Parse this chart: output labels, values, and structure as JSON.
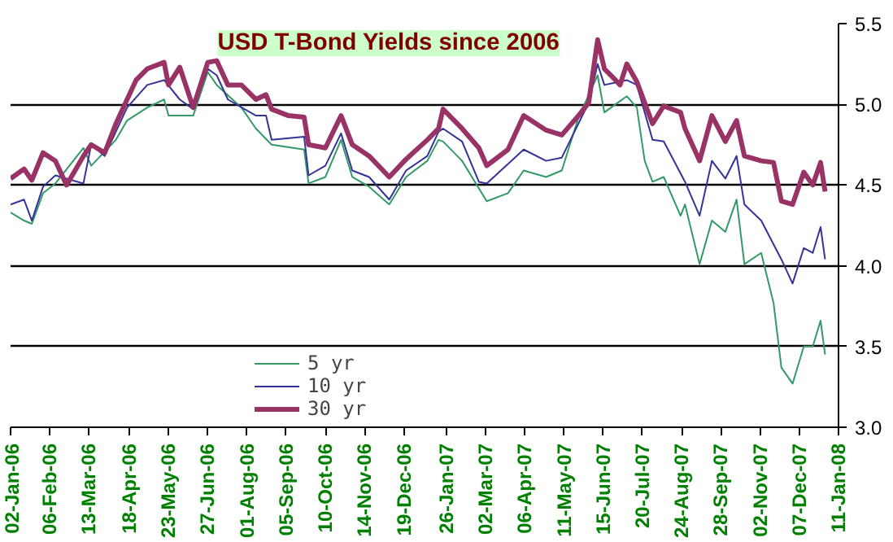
{
  "chart_data": {
    "type": "line",
    "title": "USD T-Bond Yields since 2006",
    "ylim": [
      3.0,
      5.5
    ],
    "yticks": [
      {
        "value": 3.0,
        "label": "3.0"
      },
      {
        "value": 3.5,
        "label": "3.5"
      },
      {
        "value": 4.0,
        "label": "4.0"
      },
      {
        "value": 4.5,
        "label": "4.5"
      },
      {
        "value": 5.0,
        "label": "5.0"
      },
      {
        "value": 5.5,
        "label": "5.5"
      }
    ],
    "xlim": [
      "2006-01-02",
      "2008-01-11"
    ],
    "xticks": [
      {
        "value": "2006-01-02",
        "label": "02-Jan-06"
      },
      {
        "value": "2006-02-06",
        "label": "06-Feb-06"
      },
      {
        "value": "2006-03-13",
        "label": "13-Mar-06"
      },
      {
        "value": "2006-04-18",
        "label": "18-Apr-06"
      },
      {
        "value": "2006-05-23",
        "label": "23-May-06"
      },
      {
        "value": "2006-06-27",
        "label": "27-Jun-06"
      },
      {
        "value": "2006-08-01",
        "label": "01-Aug-06"
      },
      {
        "value": "2006-09-05",
        "label": "05-Sep-06"
      },
      {
        "value": "2006-10-10",
        "label": "10-Oct-06"
      },
      {
        "value": "2006-11-14",
        "label": "14-Nov-06"
      },
      {
        "value": "2006-12-19",
        "label": "19-Dec-06"
      },
      {
        "value": "2007-01-26",
        "label": "26-Jan-07"
      },
      {
        "value": "2007-03-02",
        "label": "02-Mar-07"
      },
      {
        "value": "2007-04-06",
        "label": "06-Apr-07"
      },
      {
        "value": "2007-05-11",
        "label": "11-May-07"
      },
      {
        "value": "2007-06-15",
        "label": "15-Jun-07"
      },
      {
        "value": "2007-07-20",
        "label": "20-Jul-07"
      },
      {
        "value": "2007-08-24",
        "label": "24-Aug-07"
      },
      {
        "value": "2007-09-28",
        "label": "28-Sep-07"
      },
      {
        "value": "2007-11-02",
        "label": "02-Nov-07"
      },
      {
        "value": "2007-12-07",
        "label": "07-Dec-07"
      },
      {
        "value": "2008-01-11",
        "label": "11-Jan-08"
      }
    ],
    "grid": "y",
    "legend": "bottom left",
    "marker": "none",
    "line_style": "solid",
    "series": [
      {
        "name": "5 yr",
        "color": "#339966",
        "x": [
          "2006-01-02",
          "2006-01-14",
          "2006-01-21",
          "2006-01-31",
          "2006-02-11",
          "2006-03-08",
          "2006-03-15",
          "2006-04-06",
          "2006-04-16",
          "2006-05-04",
          "2006-05-19",
          "2006-05-23",
          "2006-06-02",
          "2006-06-14",
          "2006-06-27",
          "2006-07-05",
          "2006-07-27",
          "2006-08-09",
          "2006-08-23",
          "2006-09-21",
          "2006-09-25",
          "2006-10-10",
          "2006-10-24",
          "2006-11-03",
          "2006-11-18",
          "2006-12-06",
          "2006-12-21",
          "2007-01-09",
          "2007-01-19",
          "2007-01-23",
          "2007-02-09",
          "2007-03-03",
          "2007-03-22",
          "2007-04-05",
          "2007-04-25",
          "2007-05-09",
          "2007-05-24",
          "2007-06-10",
          "2007-06-16",
          "2007-07-06",
          "2007-07-15",
          "2007-07-22",
          "2007-07-29",
          "2007-08-08",
          "2007-08-23",
          "2007-08-27",
          "2007-09-09",
          "2007-09-20",
          "2007-10-02",
          "2007-10-12",
          "2007-10-19",
          "2007-11-03",
          "2007-11-14",
          "2007-11-21",
          "2007-12-01",
          "2007-12-11",
          "2007-12-19",
          "2007-12-26",
          "2007-12-30"
        ],
        "values": [
          4.33,
          4.28,
          4.26,
          4.45,
          4.51,
          4.73,
          4.62,
          4.78,
          4.9,
          4.98,
          5.03,
          4.93,
          4.93,
          4.93,
          5.2,
          5.12,
          4.98,
          4.85,
          4.75,
          4.72,
          4.51,
          4.55,
          4.78,
          4.55,
          4.49,
          4.38,
          4.55,
          4.65,
          4.78,
          4.77,
          4.65,
          4.4,
          4.45,
          4.59,
          4.55,
          4.59,
          4.92,
          5.18,
          4.95,
          5.05,
          4.98,
          4.65,
          4.52,
          4.55,
          4.31,
          4.38,
          4.01,
          4.28,
          4.21,
          4.41,
          4.01,
          4.08,
          3.77,
          3.37,
          3.27,
          3.5,
          3.5,
          3.66,
          3.45
        ]
      },
      {
        "name": "10 yr",
        "color": "#333399",
        "x": [
          "2006-01-02",
          "2006-01-14",
          "2006-01-21",
          "2006-01-31",
          "2006-02-11",
          "2006-03-08",
          "2006-03-15",
          "2006-03-27",
          "2006-04-06",
          "2006-04-16",
          "2006-05-04",
          "2006-05-19",
          "2006-06-02",
          "2006-06-14",
          "2006-06-27",
          "2006-07-05",
          "2006-07-15",
          "2006-08-09",
          "2006-08-18",
          "2006-08-23",
          "2006-09-21",
          "2006-09-25",
          "2006-10-10",
          "2006-10-24",
          "2006-11-03",
          "2006-11-18",
          "2006-12-06",
          "2006-12-21",
          "2007-01-09",
          "2007-01-19",
          "2007-01-23",
          "2007-02-09",
          "2007-02-24",
          "2007-03-03",
          "2007-04-05",
          "2007-04-25",
          "2007-05-09",
          "2007-06-02",
          "2007-06-10",
          "2007-06-16",
          "2007-07-06",
          "2007-07-15",
          "2007-07-29",
          "2007-08-08",
          "2007-08-27",
          "2007-09-09",
          "2007-09-20",
          "2007-10-02",
          "2007-10-12",
          "2007-10-19",
          "2007-11-03",
          "2007-11-21",
          "2007-12-01",
          "2007-12-11",
          "2007-12-19",
          "2007-12-26",
          "2007-12-30"
        ],
        "values": [
          4.38,
          4.41,
          4.28,
          4.49,
          4.56,
          4.51,
          4.75,
          4.68,
          4.83,
          4.98,
          5.12,
          5.15,
          5.03,
          4.97,
          5.22,
          5.18,
          5.03,
          4.93,
          4.93,
          4.78,
          4.8,
          4.56,
          4.62,
          4.82,
          4.59,
          4.55,
          4.41,
          4.59,
          4.68,
          4.83,
          4.85,
          4.77,
          4.52,
          4.51,
          4.72,
          4.65,
          4.67,
          5.01,
          5.25,
          5.12,
          5.15,
          5.12,
          4.78,
          4.77,
          4.52,
          4.31,
          4.65,
          4.54,
          4.68,
          4.38,
          4.28,
          4.04,
          3.89,
          4.11,
          4.08,
          4.24,
          4.04
        ]
      },
      {
        "name": "30 yr",
        "color": "#993366",
        "x": [
          "2006-01-02",
          "2006-01-14",
          "2006-01-21",
          "2006-01-31",
          "2006-02-11",
          "2006-02-21",
          "2006-03-08",
          "2006-03-15",
          "2006-03-27",
          "2006-04-06",
          "2006-04-16",
          "2006-04-24",
          "2006-05-04",
          "2006-05-19",
          "2006-05-23",
          "2006-06-02",
          "2006-06-14",
          "2006-06-27",
          "2006-07-05",
          "2006-07-15",
          "2006-07-27",
          "2006-08-09",
          "2006-08-18",
          "2006-08-23",
          "2006-09-07",
          "2006-09-21",
          "2006-09-25",
          "2006-10-10",
          "2006-10-24",
          "2006-11-03",
          "2006-11-18",
          "2006-12-06",
          "2006-12-21",
          "2007-01-09",
          "2007-01-19",
          "2007-01-23",
          "2007-02-09",
          "2007-02-24",
          "2007-03-03",
          "2007-03-22",
          "2007-04-05",
          "2007-04-25",
          "2007-05-09",
          "2007-05-24",
          "2007-06-02",
          "2007-06-10",
          "2007-06-16",
          "2007-06-26",
          "2007-06-30",
          "2007-07-06",
          "2007-07-15",
          "2007-07-22",
          "2007-07-29",
          "2007-08-08",
          "2007-08-23",
          "2007-08-27",
          "2007-09-09",
          "2007-09-20",
          "2007-10-02",
          "2007-10-12",
          "2007-10-19",
          "2007-11-03",
          "2007-11-14",
          "2007-11-21",
          "2007-12-01",
          "2007-12-11",
          "2007-12-19",
          "2007-12-26",
          "2007-12-30"
        ],
        "values": [
          4.54,
          4.6,
          4.53,
          4.7,
          4.65,
          4.5,
          4.68,
          4.75,
          4.7,
          4.88,
          5.03,
          5.15,
          5.22,
          5.26,
          5.12,
          5.23,
          4.98,
          5.26,
          5.27,
          5.12,
          5.12,
          5.03,
          5.06,
          4.97,
          4.93,
          4.92,
          4.75,
          4.73,
          4.93,
          4.75,
          4.68,
          4.55,
          4.66,
          4.78,
          4.85,
          4.97,
          4.85,
          4.73,
          4.62,
          4.72,
          4.93,
          4.84,
          4.81,
          4.93,
          5.01,
          5.4,
          5.22,
          5.15,
          5.12,
          5.25,
          5.14,
          5.01,
          4.88,
          4.99,
          4.95,
          4.85,
          4.65,
          4.93,
          4.77,
          4.9,
          4.68,
          4.65,
          4.64,
          4.4,
          4.38,
          4.58,
          4.5,
          4.64,
          4.46
        ]
      }
    ]
  }
}
